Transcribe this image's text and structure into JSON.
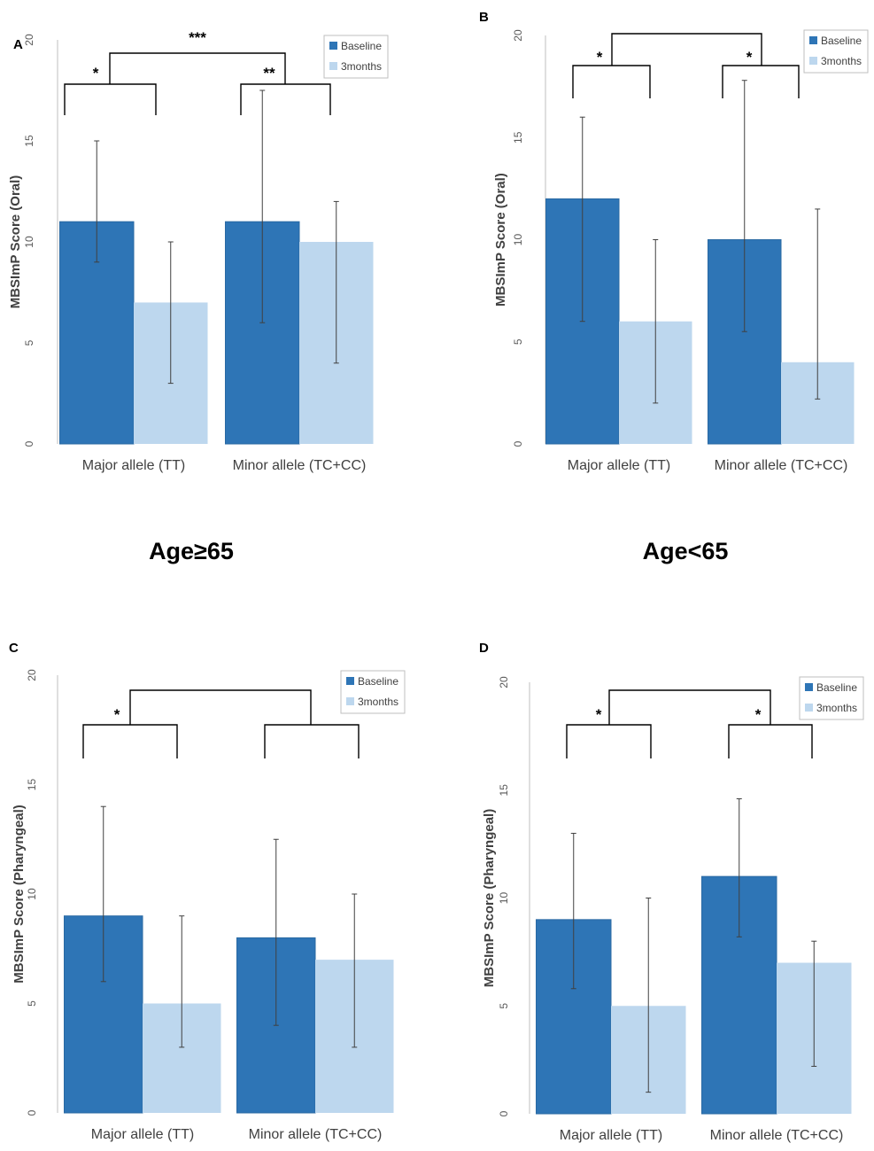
{
  "age_labels": [
    "Age≥65",
    "Age<65"
  ],
  "chart_data": [
    {
      "panel": "A",
      "type": "bar",
      "ylabel": "MBSImP Score (Oral)",
      "ylim": [
        0,
        20
      ],
      "yticks": [
        "0",
        "5",
        "10",
        "15",
        "20"
      ],
      "categories": [
        "Major allele (TT)",
        "Minor allele (TC+CC)"
      ],
      "series": [
        {
          "name": "Baseline",
          "color": "#2e75b6",
          "values": [
            11,
            11
          ],
          "err_low": [
            9,
            6
          ],
          "err_high": [
            15,
            17.5
          ]
        },
        {
          "name": "3months",
          "color": "#bdd7ee",
          "values": [
            7,
            10
          ],
          "err_low": [
            3,
            4
          ],
          "err_high": [
            10,
            12
          ]
        }
      ],
      "legend": "top-right",
      "significance": {
        "within": [
          "*",
          "**"
        ],
        "between": "***"
      }
    },
    {
      "panel": "B",
      "type": "bar",
      "ylabel": "MBSImP Score (Oral)",
      "ylim": [
        0,
        20
      ],
      "yticks": [
        "0",
        "5",
        "10",
        "15",
        "20"
      ],
      "categories": [
        "Major allele (TT)",
        "Minor allele (TC+CC)"
      ],
      "series": [
        {
          "name": "Baseline",
          "color": "#2e75b6",
          "values": [
            12,
            10
          ],
          "err_low": [
            6,
            5.5
          ],
          "err_high": [
            16,
            17.8
          ]
        },
        {
          "name": "3months",
          "color": "#bdd7ee",
          "values": [
            6,
            4
          ],
          "err_low": [
            2,
            2.2
          ],
          "err_high": [
            10,
            11.5
          ]
        }
      ],
      "legend": "top-right",
      "significance": {
        "within": [
          "*",
          "*"
        ],
        "between": ""
      }
    },
    {
      "panel": "C",
      "type": "bar",
      "ylabel": "MBSImP Score (Pharyngeal)",
      "ylim": [
        0,
        20
      ],
      "yticks": [
        "0",
        "5",
        "10",
        "15",
        "20"
      ],
      "categories": [
        "Major allele (TT)",
        "Minor allele (TC+CC)"
      ],
      "series": [
        {
          "name": "Baseline",
          "color": "#2e75b6",
          "values": [
            9,
            8
          ],
          "err_low": [
            6,
            4
          ],
          "err_high": [
            14,
            12.5
          ]
        },
        {
          "name": "3months",
          "color": "#bdd7ee",
          "values": [
            5,
            7
          ],
          "err_low": [
            3,
            3
          ],
          "err_high": [
            9,
            10
          ]
        }
      ],
      "legend": "top-right",
      "significance": {
        "within": [
          "*",
          ""
        ],
        "between": ""
      }
    },
    {
      "panel": "D",
      "type": "bar",
      "ylabel": "MBSImP Score (Pharyngeal)",
      "ylim": [
        0,
        20
      ],
      "yticks": [
        "0",
        "5",
        "10",
        "15",
        "20"
      ],
      "categories": [
        "Major allele (TT)",
        "Minor allele (TC+CC)"
      ],
      "series": [
        {
          "name": "Baseline",
          "color": "#2e75b6",
          "values": [
            9,
            11
          ],
          "err_low": [
            5.8,
            8.2
          ],
          "err_high": [
            13,
            14.6
          ]
        },
        {
          "name": "3months",
          "color": "#bdd7ee",
          "values": [
            5,
            7
          ],
          "err_low": [
            1,
            2.2
          ],
          "err_high": [
            10,
            8
          ]
        }
      ],
      "legend": "top-right",
      "significance": {
        "within": [
          "*",
          "*"
        ],
        "between": ""
      }
    }
  ]
}
